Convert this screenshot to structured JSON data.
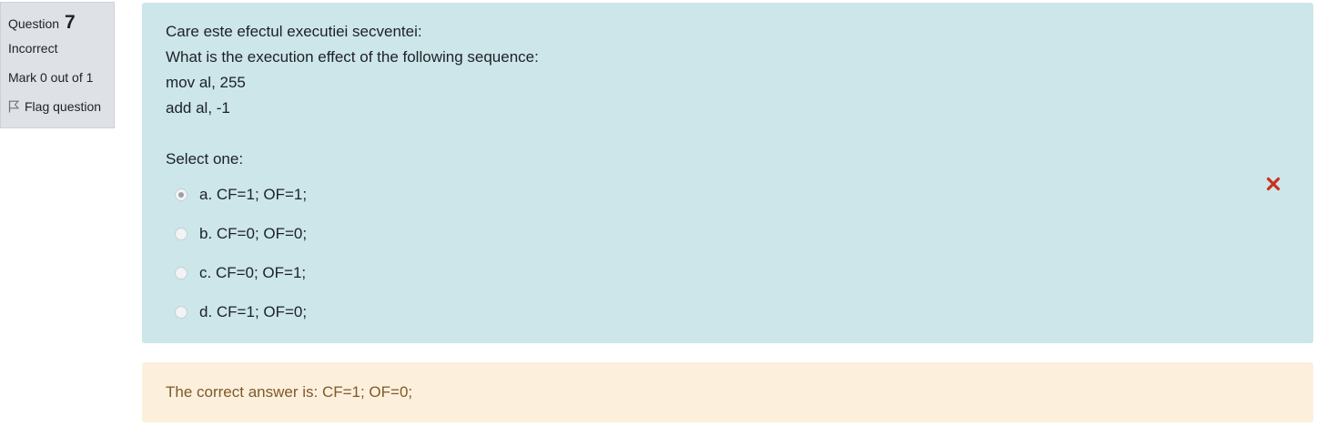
{
  "info": {
    "question_label": "Question",
    "question_number": "7",
    "state": "Incorrect",
    "grade": "Mark 0 out of 1",
    "flag_label": "Flag question"
  },
  "question": {
    "text_lines": [
      "Care este efectul executiei secventei:",
      "What is the execution effect of the following sequence:",
      "mov al, 255",
      "add al, -1"
    ],
    "prompt": "Select one:",
    "answers": [
      {
        "label": "a. CF=1; OF=1;",
        "selected": true
      },
      {
        "label": "b. CF=0; OF=0;",
        "selected": false
      },
      {
        "label": "c. CF=0; OF=1;",
        "selected": false
      },
      {
        "label": "d. CF=1; OF=0;",
        "selected": false
      }
    ],
    "result_icon": "incorrect-cross-icon"
  },
  "feedback": {
    "right_answer": "The correct answer is: CF=1; OF=0;"
  },
  "colors": {
    "info_bg": "#dee2e6",
    "question_bg": "#cce6ea",
    "feedback_bg": "#fcefdc",
    "feedback_text": "#7d5a29",
    "incorrect_icon": "#ca3120"
  }
}
